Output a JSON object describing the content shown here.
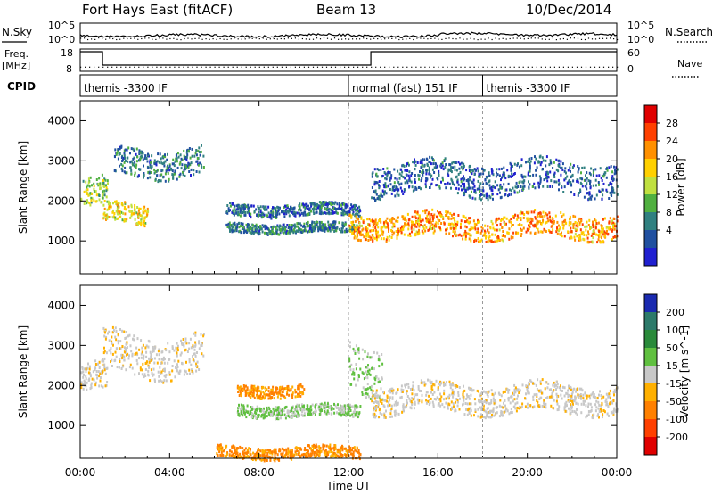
{
  "header": {
    "title": "Fort Hays East (fitACF)",
    "beam": "Beam 13",
    "date": "10/Dec/2014"
  },
  "left_labels": {
    "nsky": "N.Sky",
    "freq": "Freq.",
    "freq_unit": "[MHz]",
    "cpid": "CPID"
  },
  "right_labels": {
    "nsearch": "N.Search",
    "nave": "Nave"
  },
  "noise_axis": {
    "top": "10^5",
    "bottom": "10^0"
  },
  "freq_axis": {
    "ticks": [
      "18",
      "8"
    ]
  },
  "nave_axis": {
    "ticks": [
      "60",
      "0"
    ]
  },
  "cpid_segments": [
    {
      "label": "themis -3300 IF",
      "start_hour": 0
    },
    {
      "label": "normal (fast) 151 IF",
      "start_hour": 12.0
    },
    {
      "label": "themis -3300 IF",
      "start_hour": 18.0
    }
  ],
  "x_axis": {
    "label": "Time UT",
    "ticks": [
      "00:00",
      "04:00",
      "08:00",
      "12:00",
      "16:00",
      "20:00",
      "00:00"
    ],
    "range_hours": [
      0,
      24
    ]
  },
  "power_panel": {
    "ylabel": "Slant Range [km]",
    "yticks": [
      "4000",
      "3000",
      "2000",
      "1000"
    ],
    "colorbar_label": "Power [dB]",
    "colorbar_ticks": [
      "28",
      "24",
      "20",
      "16",
      "12",
      "8",
      "4"
    ],
    "colorbar_colors": [
      "#e00000",
      "#ff4000",
      "#ff9000",
      "#ffd000",
      "#c0e040",
      "#50b040",
      "#308080",
      "#2050a0",
      "#2020d0"
    ]
  },
  "velocity_panel": {
    "ylabel": "Slant Range [km]",
    "yticks": [
      "4000",
      "3000",
      "2000",
      "1000"
    ],
    "colorbar_label": "Velocity [m s^-1]",
    "colorbar_ticks": [
      "200",
      "100",
      "50",
      "15",
      "-15",
      "-50",
      "-100",
      "-200"
    ],
    "colorbar_colors": [
      "#1a2ab0",
      "#2d7a6a",
      "#2a8a3a",
      "#60c040",
      "#c8c8c8",
      "#ffb000",
      "#ff8000",
      "#ff4000",
      "#e00000"
    ]
  },
  "chart_data": [
    {
      "type": "heatmap",
      "title": "Fort Hays East (fitACF)",
      "xlabel": "Time UT",
      "ylabel": "Slant Range [km]",
      "colorbar": "Power [dB]",
      "xlim": [
        0,
        24
      ],
      "ylim": [
        180,
        4500
      ],
      "x_tick_labels": [
        "00:00",
        "04:00",
        "08:00",
        "12:00",
        "16:00",
        "20:00",
        "00:00"
      ],
      "y_ticks": [
        1000,
        2000,
        3000,
        4000
      ],
      "color_scale": [
        4,
        8,
        12,
        16,
        20,
        24,
        28
      ],
      "bands": [
        {
          "t_start": 0.0,
          "t_end": 1.2,
          "range_center": 2200,
          "range_halfwidth": 350,
          "power": 14
        },
        {
          "t_start": 1.0,
          "t_end": 3.0,
          "range_center": 1700,
          "range_halfwidth": 250,
          "power": 18
        },
        {
          "t_start": 1.5,
          "t_end": 5.5,
          "range_center": 3000,
          "range_halfwidth": 350,
          "power": 8
        },
        {
          "t_start": 6.5,
          "t_end": 12.5,
          "range_center": 1800,
          "range_halfwidth": 150,
          "power": 7
        },
        {
          "t_start": 6.5,
          "t_end": 12.5,
          "range_center": 1350,
          "range_halfwidth": 120,
          "power": 8
        },
        {
          "t_start": 12.0,
          "t_end": 24.0,
          "range_center": 1400,
          "range_halfwidth": 300,
          "power": 22
        },
        {
          "t_start": 13.0,
          "t_end": 24.0,
          "range_center": 2600,
          "range_halfwidth": 400,
          "power": 6
        }
      ]
    },
    {
      "type": "heatmap",
      "xlabel": "Time UT",
      "ylabel": "Slant Range [km]",
      "colorbar": "Velocity [m s^-1]",
      "xlim": [
        0,
        24
      ],
      "ylim": [
        180,
        4500
      ],
      "x_tick_labels": [
        "00:00",
        "04:00",
        "08:00",
        "12:00",
        "16:00",
        "20:00",
        "00:00"
      ],
      "y_ticks": [
        1000,
        2000,
        3000,
        4000
      ],
      "color_scale": [
        -200,
        -100,
        -50,
        -15,
        15,
        50,
        100,
        200
      ],
      "bands": [
        {
          "t_start": 0.0,
          "t_end": 1.2,
          "range_center": 2200,
          "range_halfwidth": 350,
          "velocity": 0
        },
        {
          "t_start": 1.0,
          "t_end": 5.5,
          "range_center": 2800,
          "range_halfwidth": 500,
          "velocity": 0
        },
        {
          "t_start": 7.0,
          "t_end": 10.0,
          "range_center": 1900,
          "range_halfwidth": 150,
          "velocity": -60
        },
        {
          "t_start": 7.0,
          "t_end": 12.5,
          "range_center": 1400,
          "range_halfwidth": 150,
          "velocity": 40
        },
        {
          "t_start": 12.0,
          "t_end": 13.5,
          "range_center": 2500,
          "range_halfwidth": 600,
          "velocity": 40
        },
        {
          "t_start": 13.0,
          "t_end": 24.0,
          "range_center": 1700,
          "range_halfwidth": 350,
          "velocity": 0
        },
        {
          "t_start": 6.0,
          "t_end": 12.5,
          "range_center": 350,
          "range_halfwidth": 150,
          "velocity": -60
        }
      ]
    }
  ]
}
